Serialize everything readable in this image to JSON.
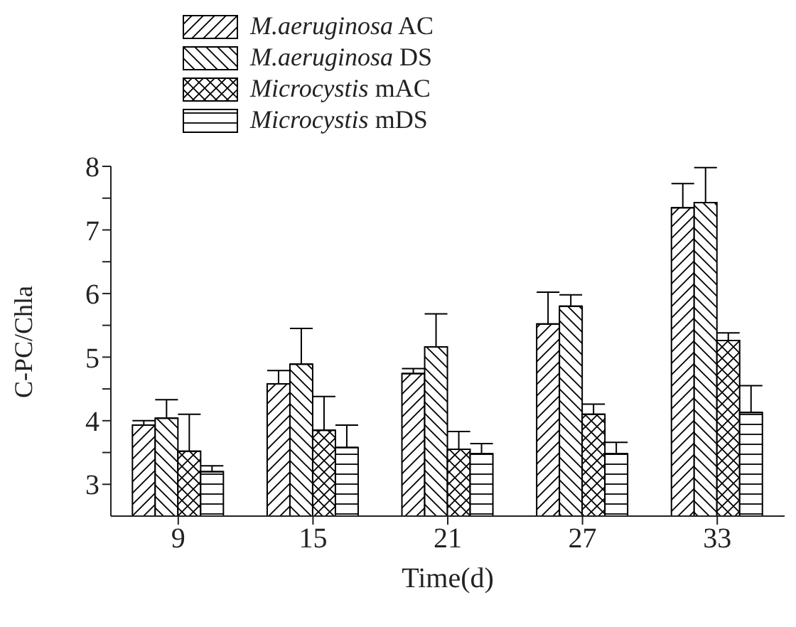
{
  "chart_data": {
    "type": "bar",
    "xlabel": "Time(d)",
    "ylabel": "C-PC/Chla",
    "categories": [
      "9",
      "15",
      "21",
      "27",
      "33"
    ],
    "series": [
      {
        "name": "M.aeruginosa AC",
        "color": "#000000",
        "values": [
          3.93,
          4.58,
          4.74,
          5.52,
          7.35
        ],
        "errors": [
          [
            3.93,
            4.0
          ],
          [
            4.58,
            4.79
          ],
          [
            4.74,
            4.82
          ],
          [
            5.52,
            6.02
          ],
          [
            7.35,
            7.73
          ]
        ]
      },
      {
        "name": "M.aeruginosa DS",
        "color": "#000000",
        "values": [
          4.04,
          4.89,
          5.16,
          5.8,
          7.43
        ],
        "errors": [
          [
            4.04,
            4.33
          ],
          [
            4.89,
            5.45
          ],
          [
            5.16,
            5.68
          ],
          [
            5.8,
            5.98
          ],
          [
            7.43,
            7.98
          ]
        ]
      },
      {
        "name": "Microcystis mAC",
        "color": "#000000",
        "values": [
          3.52,
          3.85,
          3.55,
          4.1,
          5.26
        ],
        "errors": [
          [
            3.52,
            4.1
          ],
          [
            3.85,
            4.38
          ],
          [
            3.55,
            3.83
          ],
          [
            4.1,
            4.26
          ],
          [
            5.26,
            5.38
          ]
        ]
      },
      {
        "name": "Microcystis mDS",
        "color": "#000000",
        "values": [
          3.2,
          3.58,
          3.48,
          3.48,
          4.13
        ],
        "errors": [
          [
            3.2,
            3.29
          ],
          [
            3.58,
            3.93
          ],
          [
            3.48,
            3.64
          ],
          [
            3.48,
            3.66
          ],
          [
            4.13,
            4.55
          ]
        ]
      }
    ],
    "ylim": [
      2.5,
      8
    ],
    "yticks": [
      3,
      {
        "value": 3.5,
        "label": null
      },
      4,
      {
        "value": 4.5,
        "label": null
      },
      5,
      {
        "value": 5.5,
        "label": null
      },
      6,
      {
        "value": 6.5,
        "label": null
      },
      7,
      {
        "value": 7.5,
        "label": null
      },
      8
    ],
    "grid": false,
    "legend": "top left"
  }
}
